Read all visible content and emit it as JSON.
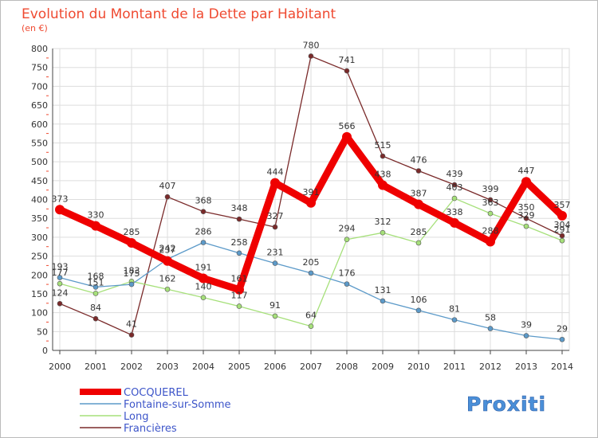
{
  "chart_data": {
    "type": "line",
    "title": "Evolution du Montant de la Dette par Habitant",
    "subtitle": "(en €)",
    "x": [
      2000,
      2001,
      2002,
      2003,
      2004,
      2005,
      2006,
      2007,
      2008,
      2009,
      2010,
      2011,
      2012,
      2013,
      2014
    ],
    "ylim": [
      0,
      800
    ],
    "yticks": [
      0,
      50,
      100,
      150,
      200,
      250,
      300,
      350,
      400,
      450,
      500,
      550,
      600,
      650,
      700,
      750,
      800
    ],
    "grid": true,
    "legend_position": "bottom-left",
    "series": [
      {
        "name": "COCQUEREL",
        "color": "#ef0000",
        "values": [
          373,
          330,
          285,
          237,
          191,
          161,
          444,
          391,
          566,
          438,
          387,
          338,
          288,
          447,
          357
        ]
      },
      {
        "name": "Fontaine-sur-Somme",
        "color": "#5c9ac9",
        "values": [
          193,
          168,
          175,
          242,
          286,
          258,
          231,
          205,
          176,
          131,
          106,
          81,
          58,
          39,
          29
        ]
      },
      {
        "name": "Long",
        "color": "#a6e07a",
        "values": [
          177,
          151,
          183,
          162,
          140,
          117,
          91,
          64,
          294,
          312,
          285,
          403,
          363,
          329,
          291
        ]
      },
      {
        "name": "Francières",
        "color": "#7a2a2a",
        "values": [
          124,
          84,
          41,
          407,
          368,
          348,
          327,
          780,
          741,
          515,
          476,
          439,
          399,
          350,
          304
        ]
      }
    ]
  },
  "logo": {
    "text": "Proxiti"
  }
}
